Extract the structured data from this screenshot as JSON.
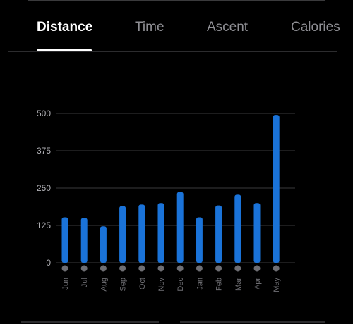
{
  "tabs": [
    {
      "label": "Distance",
      "active": true
    },
    {
      "label": "Time",
      "active": false
    },
    {
      "label": "Ascent",
      "active": false
    },
    {
      "label": "Calories",
      "active": false
    }
  ],
  "colors": {
    "bar": "#1a73d9",
    "grid": "#3a3a3c",
    "axis_text": "#b0b0b5",
    "month_text": "#6e6e73",
    "dot": "#6e6e73"
  },
  "chart_data": {
    "type": "bar",
    "categories": [
      "Jun",
      "Jul",
      "Aug",
      "Sep",
      "Oct",
      "Nov",
      "Dec",
      "Jan",
      "Feb",
      "Mar",
      "Apr",
      "May"
    ],
    "values": [
      152,
      150,
      122,
      190,
      195,
      200,
      237,
      152,
      192,
      228,
      200,
      495
    ],
    "yticks": [
      0,
      125,
      250,
      375,
      500
    ],
    "ylim": [
      0,
      500
    ],
    "grid": true,
    "title": "",
    "xlabel": "",
    "ylabel": ""
  }
}
